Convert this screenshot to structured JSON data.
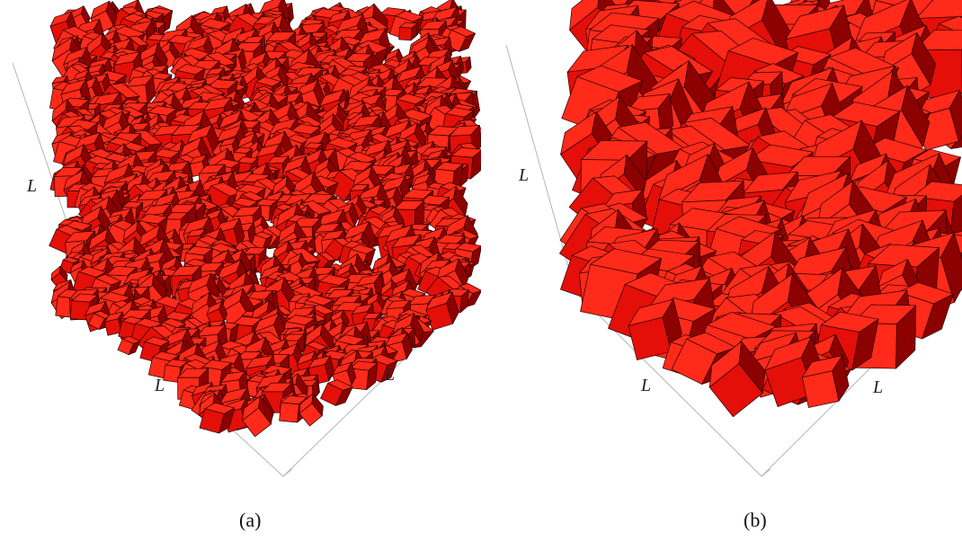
{
  "colors": {
    "top_face": "#ff2a1a",
    "light_face": "#e30f08",
    "dark_face": "#8c0000",
    "edge": "#2a0000",
    "axis": "#b5b5b5"
  },
  "panels": [
    {
      "caption": "(a)",
      "axis_labels": {
        "vertical": "L",
        "left_base": "L",
        "right_base": "L"
      }
    },
    {
      "caption": "(b)",
      "axis_labels": {
        "vertical": "L",
        "left_base": "L",
        "right_base": "L"
      }
    }
  ]
}
